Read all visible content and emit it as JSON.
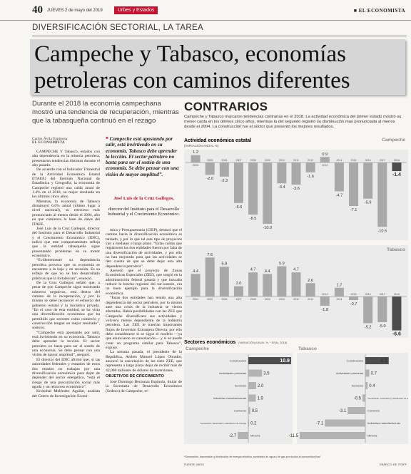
{
  "header": {
    "page": "40",
    "date": "JUEVES 2 de mayo del 2019",
    "section": "Urbes y Estados",
    "brand": "■ EL ECONOMISTA"
  },
  "kicker": "DIVERSIFICACIÓN SECTORIAL, LA TAREA",
  "headline": "Campeche y Tabasco, economías petroleras con caminos diferentes",
  "deck": "Durante el 2018 la economía campechana mostró una tendencia de recuperación, mientras que la tabasqueña continuó en el rezago",
  "byline": {
    "author": "Carlos Ávila Espinosa",
    "outlet": "EL ECONOMISTA"
  },
  "article": {
    "column_1": [
      "CAMPECHE Y Tabasco, estados con alta dependencia en la minería petrolera, presentaron tendencias distintas durante el año pasado.",
      "De acuerdo con el Indicador Trimestral de la Actividad Económica Estatal (ITAEE) del Instituto Nacional de Estadística y Geografía, la economía de Campeche registró una caída anual de 1.4% en el 2018, su mejor resultado en los últimos cinco años.",
      "Mientras, la economía de Tabasco disminuyó 6.6% anual (último lugar a nivel nacional), su retroceso más pronunciado al menos desde el 2004, año en que comienza la base de datos del ITAEE.",
      "José Luis de la Cruz Gallegos, director del Instituto para el Desarrollo Industrial y el Crecimiento Económico (IDIC), indicó que este comportamiento refleja que la entidad tabasqueña sigue presentando problemas en su motor económico.",
      "“Evidentemente su dependencia petrolera provoca que su economía se encuentre a la baja y en recesión. Es su reflejo de que no se han desarrollado políticas que la fortalezcan”, enunció.",
      "De la Cruz Gallegos señaló que, a pesar de que Campeche sigue mostrando números negativos, está dentro del camino de la recuperación, y por lo mismo se debe reconocer el esfuerzo del gobierno estatal y la iniciativa privada. “En el caso de esta entidad, se ha visto una diversificación económica que ha permitido que sectores como comercio y construcción tengan un mejor resultado”, sostuvo.",
      "“Campeche está apostando por salir, está invirtiendo en su economía. Tabasco debe aprender la lección. El sector petrolero no basta para ser el sostén de una economía. Se debe pensar con una visión de mayor amplitud”, aseguró.",
      "El director del IDIC afirmó que, si las autoridades federales y estatales de estos dos estados no trabajan por una diversificación económica para dejar de depender del sector energético, “está el riesgo de una precarización social más aguda y un retroceso económico”.",
      "Kristobal Meléndez Aguilar, analista del Centro de Investigación Econó-"
    ],
    "column_2": [
      "mica y Presupuestaria (CIEP), destacó que el camino hacia la diversificación económica es tardado, y por lo que tal este tipo de proyectos van a mediano o largo plazo. “Estas caídas que registraron las dos entidades fueron por falta de una diversificación de actividades, y por ello no han mejorado para que las actividades se den cuenta de que se debe dejar esta alta dependencia petrolera”.",
      "Aseveró que el proyecto de Zonas Económicas Especiales (ZEE), que surgió en la administración federal pasada y que buscaba reducir la brecha regional del sur-sureste, era un buen ejemplo para la diversificación económica.",
      "“Estas dos entidades han tenido una alta dependencia del sector petrolero, por lo mismo ante una crisis de la industria se vieron afectadas. Había posibilidades con las ZEE que Campeche diversificara sus actividades y volviera menos dependiente de la industria petrolera. Las ZEE le traerían importantes flujos de Inversión Extranjera Directa, por ello debe considerarse si se sigue el modelo —ya que anunciaron su cancelación— y si se puede crear un programa similar para Tabasco”, expuso.",
      "La semana pasada, el presidente de la República, Andrés Manuel López Obrador, anunció la cancelación de las siete ZEE, que representa a largo plazo dejar de recibir más de 42,000 millones de dólares de inversiones."
    ],
    "subhead": "OBJETIVOS DE CRECIMIENTO",
    "after_subhead": [
      "José Domingo Berzunza Espínola, titular de la Secretaría de Desarrollo Económico (Sedeco) de Campeche, re-"
    ]
  },
  "quote": {
    "text": "Campeche está apostando por salir, está invirtiendo en su economía. Tabasco debe aprender la lección. El sector petrolero no basta para ser el sostén de una economía. Se debe pensar con una visión de mayor amplitud”.",
    "name": "José Luis de la Cruz Gallegos,",
    "role": "director del Instituto para el Desarrollo Industrial y el Crecimiento Económico."
  },
  "infographic": {
    "title": "CONTRARIOS",
    "intro": "Campeche y Tabasco marcaron tendencias contrarias en el 2018. La actividad económica del primer estado mostró su menor caída en los últimos cinco años, mientras la del segundo registró su disminución más pronunciada al menos desde el 2004. La construcción fue el sector que presentó los mejores resultados.",
    "activity": {
      "title": "Actividad económica estatal",
      "subtitle": "(VARIACIÓN ANUAL %)",
      "categories": [
        "2004",
        "2005",
        "2006",
        "2007",
        "2008",
        "2009",
        "2010",
        "2011",
        "2012",
        "2013",
        "2014",
        "2015",
        "2016",
        "2017",
        "2018"
      ],
      "series": [
        {
          "name": "Campeche",
          "values": [
            1.2,
            -2.0,
            -2.3,
            -6.6,
            -8.5,
            -10.0,
            -3.4,
            -3.6,
            -1.6,
            0.9,
            -4.7,
            -7.1,
            -5.9,
            -10.5,
            -1.4
          ],
          "value_labels": [
            "1.2",
            "-2.0",
            "-2.3",
            "-6.6",
            "-8.5",
            "-10.0",
            "-3.4",
            "-3.6",
            "-1.6",
            "0.9",
            "-4.7",
            "-7.1",
            "-5.9",
            "-10.5",
            "-1.4"
          ],
          "colors": [
            "#a9a9a9",
            "#a9a9a9",
            "#a9a9a9",
            "#a9a9a9",
            "#a9a9a9",
            "#a9a9a9",
            "#a9a9a9",
            "#a9a9a9",
            "#a9a9a9",
            "#a9a9a9",
            "#a9a9a9",
            "#a9a9a9",
            "#a9a9a9",
            "#a9a9a9",
            "#4d4d4d"
          ]
        },
        {
          "name": "Tabasco",
          "values": [
            4.4,
            7.6,
            5.8,
            2.0,
            4.7,
            4.4,
            5.9,
            4.7,
            2.6,
            -1.8,
            1.7,
            -0.7,
            -5.2,
            -5.0,
            -6.6
          ],
          "value_labels": [
            "4.4",
            "7.6",
            "5.8",
            "2.0",
            "4.7",
            "4.4",
            "5.9",
            "4.7",
            "2.6",
            "-1.8",
            "1.7",
            "-0.7",
            "-5.2",
            "-5.0",
            "-6.6"
          ],
          "colors": [
            "#a9a9a9",
            "#a9a9a9",
            "#a9a9a9",
            "#a9a9a9",
            "#a9a9a9",
            "#a9a9a9",
            "#a9a9a9",
            "#a9a9a9",
            "#a9a9a9",
            "#a9a9a9",
            "#a9a9a9",
            "#a9a9a9",
            "#a9a9a9",
            "#a9a9a9",
            "#4d4d4d"
          ]
        }
      ]
    },
    "sectors": {
      "title": "Sectores económicos",
      "subtitle": "(VARIACIÓN ANUAL %, * ERAL 2018)",
      "panels": [
        {
          "name": "Campeche",
          "categories": [
            "Construcción",
            "Actividades primarias",
            "Servicios",
            "Industrias manufactureras",
            "Comercio",
            "*Generación, transmisión y distribución de energía",
            "Minería"
          ],
          "values": [
            10.9,
            3.5,
            2.0,
            1.9,
            0.5,
            0.2,
            -2.7
          ],
          "value_labels": [
            "10.9",
            "3.5",
            "2.0",
            "1.9",
            "0.5",
            "0.2",
            "-2.7"
          ],
          "colors": [
            "#4d4d4d",
            "#b3b3b3",
            "#b3b3b3",
            "#b3b3b3",
            "#b3b3b3",
            "#b3b3b3",
            "#b3b3b3"
          ]
        },
        {
          "name": "Tabasco",
          "categories": [
            "Construcción",
            "Actividades primarias",
            "Servicios",
            "*Generación, transmisión y distribución de energía",
            "Comercio",
            "Industrias manufactureras",
            "Minería"
          ],
          "values": [
            4.1,
            0.7,
            0.4,
            -0.5,
            -3.1,
            -7.1,
            -11.5
          ],
          "value_labels": [
            "4.1",
            "0.7",
            "0.4",
            "-0.5",
            "-3.1",
            "-7.1",
            "-11.5"
          ],
          "colors": [
            "#4d4d4d",
            "#b3b3b3",
            "#b3b3b3",
            "#b3b3b3",
            "#b3b3b3",
            "#b3b3b3",
            "#b3b3b3"
          ]
        }
      ]
    },
    "footnote": "*Generación, transmisión y distribución de energía eléctrica, suministro de agua y de gas por ductos al consumidor final",
    "source": "FUENTE: INEGI",
    "credit": "GRÁFICO: EE: STAFF"
  }
}
